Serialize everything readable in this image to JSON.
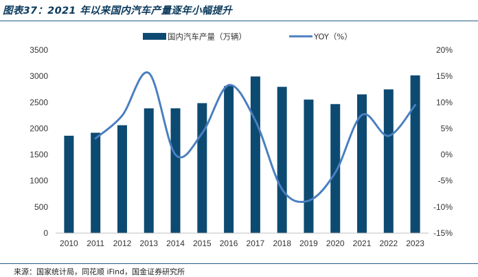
{
  "title": "图表37：2021 年以来国内汽车产量逐年小幅提升",
  "source": "来源：国家统计局，同花顺 iFind，国金证券研究所",
  "chart_data": {
    "type": "bar",
    "categories": [
      "2010",
      "2011",
      "2012",
      "2013",
      "2014",
      "2015",
      "2016",
      "2017",
      "2018",
      "2019",
      "2020",
      "2021",
      "2022",
      "2023"
    ],
    "series": [
      {
        "name": "国内汽车产量（万辆）",
        "type": "bar",
        "axis": "left",
        "color": "#0d4a72",
        "values": [
          1862,
          1919,
          2063,
          2385,
          2386,
          2485,
          2813,
          2995,
          2797,
          2553,
          2467,
          2653,
          2748,
          3016
        ]
      },
      {
        "name": "YOY（%）",
        "type": "line",
        "axis": "right",
        "color": "#4a7fbf",
        "values": [
          null,
          3.1,
          7.5,
          15.6,
          0.0,
          4.1,
          13.3,
          6.5,
          -6.6,
          -8.8,
          -3.4,
          7.6,
          3.6,
          9.5
        ]
      }
    ],
    "y_left": {
      "min": 0,
      "max": 3500,
      "step": 500,
      "ticks": [
        "0",
        "500",
        "1000",
        "1500",
        "2000",
        "2500",
        "3000",
        "3500"
      ]
    },
    "y_right": {
      "min": -15,
      "max": 20,
      "step": 5,
      "ticks": [
        "-15%",
        "-10%",
        "-5%",
        "0%",
        "5%",
        "10%",
        "15%",
        "20%"
      ]
    },
    "legend_position": "top-center",
    "grid": false
  }
}
